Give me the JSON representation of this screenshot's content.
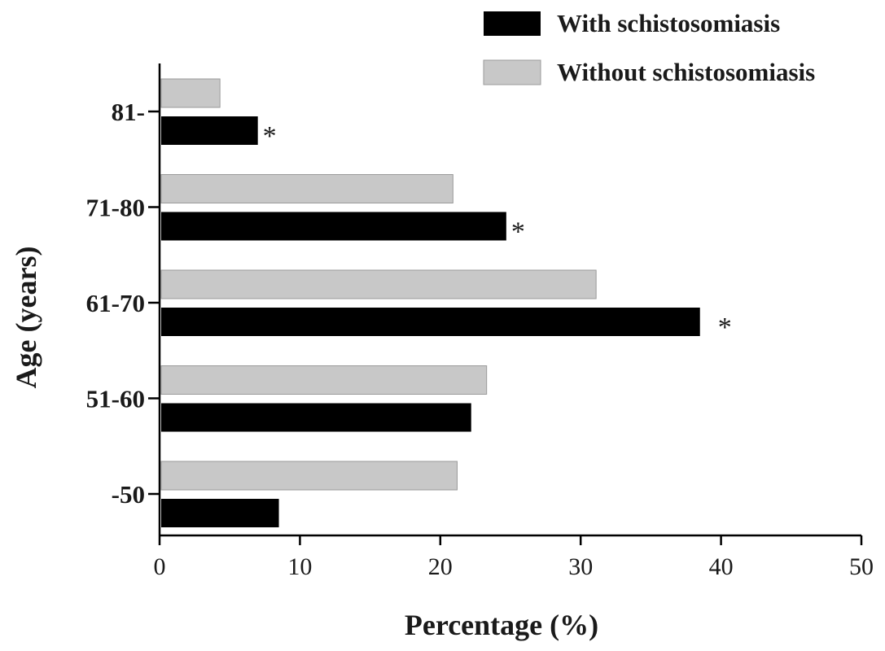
{
  "chart_data": {
    "type": "bar",
    "orientation": "horizontal",
    "title": "",
    "xlabel": "Percentage (%)",
    "ylabel": "Age (years)",
    "xlim": [
      0,
      50
    ],
    "xticks": [
      "0",
      "10",
      "20",
      "30",
      "40",
      "50"
    ],
    "categories": [
      "-50",
      "51-60",
      "61-70",
      "71-80",
      "81-"
    ],
    "series": [
      {
        "name": "With schistosomiasis",
        "color": "#000000",
        "values": [
          8.5,
          22.2,
          38.5,
          24.7,
          7.0
        ]
      },
      {
        "name": "Without schistosomiasis",
        "color": "#c8c8c8",
        "values": [
          21.2,
          23.3,
          31.1,
          20.9,
          4.3
        ]
      }
    ],
    "annotations": [
      {
        "category": "61-70",
        "series": "With schistosomiasis",
        "text": "*"
      },
      {
        "category": "71-80",
        "series": "With schistosomiasis",
        "text": "*"
      },
      {
        "category": "81-",
        "series": "With schistosomiasis",
        "text": "*"
      }
    ],
    "legend_position": "top-right",
    "grid": false
  }
}
